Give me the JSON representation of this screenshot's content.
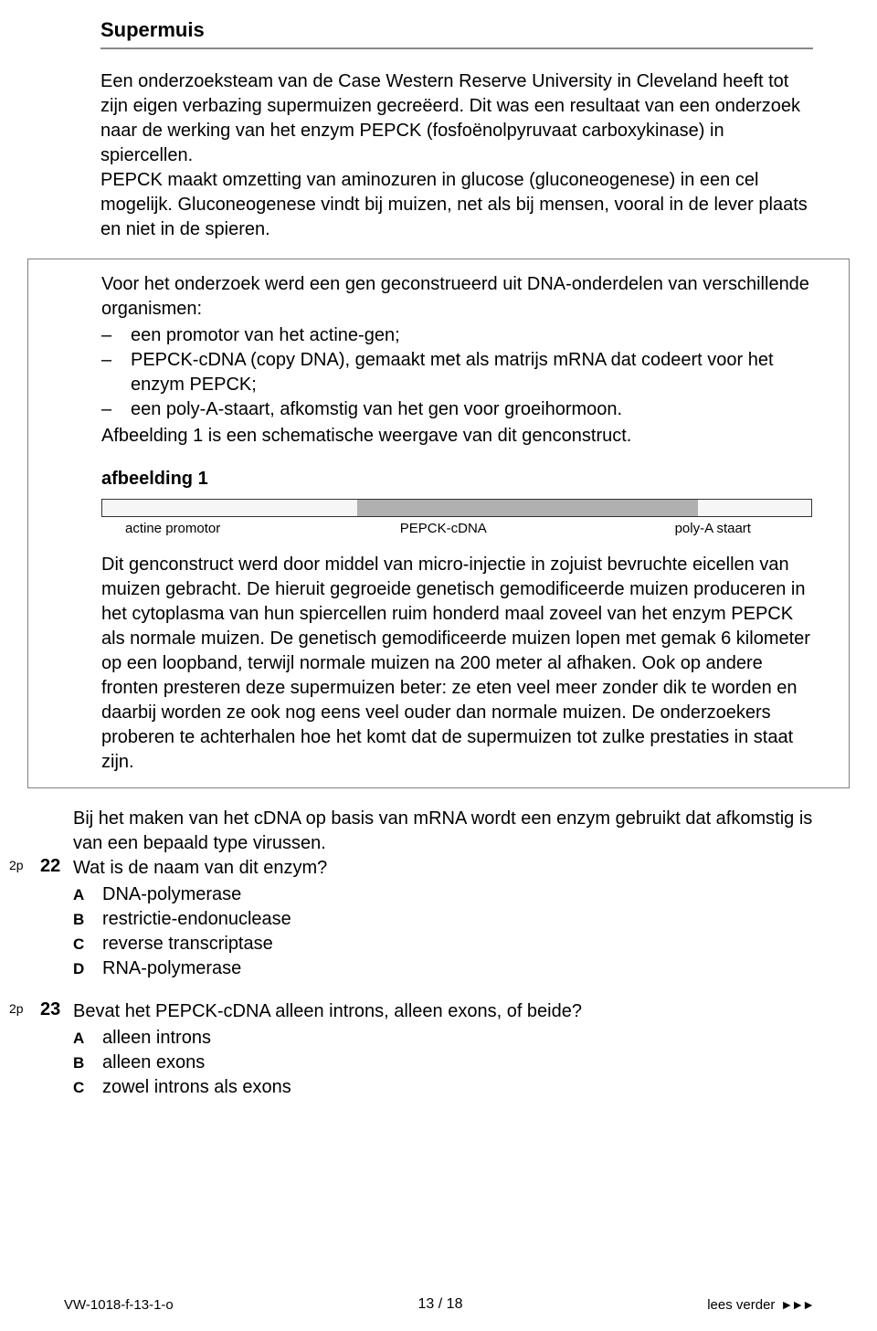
{
  "title": "Supermuis",
  "paragraph1": "Een onderzoeksteam van de Case Western Reserve University in Cleveland heeft tot zijn eigen verbazing supermuizen gecreëerd. Dit was een resultaat van een onderzoek naar de werking van het enzym PEPCK (fosfoënolpyruvaat carboxykinase) in spiercellen.",
  "paragraph1b": "PEPCK maakt omzetting van aminozuren in glucose (gluconeogenese) in een cel mogelijk. Gluconeogenese vindt bij muizen, net als bij mensen, vooral in de lever plaats en niet in de spieren.",
  "box_intro": "Voor het onderzoek werd een gen geconstrueerd uit DNA-onderdelen van verschillende organismen:",
  "box_item1": "een promotor van het actine-gen;",
  "box_item2": "PEPCK-cDNA (copy DNA), gemaakt met als matrijs mRNA dat codeert voor het enzym PEPCK;",
  "box_item3": "een poly-A-staart, afkomstig van het gen voor groeihormoon.",
  "box_closing": "Afbeelding 1 is een schematische weergave van dit genconstruct.",
  "fig_label": "afbeelding 1",
  "diagram": {
    "seg1_width": 36,
    "seg2_width": 48,
    "seg3_width": 16,
    "label1": "actine promotor",
    "label2": "PEPCK-cDNA",
    "label3": "poly-A staart",
    "label1_flex": 40,
    "label2_flex": 40,
    "label3_flex": 20
  },
  "paragraph_after_fig": "Dit genconstruct werd door middel van micro-injectie in zojuist bevruchte eicellen van muizen gebracht. De hieruit gegroeide genetisch gemodificeerde muizen produceren in het cytoplasma van hun spiercellen ruim honderd maal zoveel van het enzym PEPCK als normale muizen. De genetisch gemodificeerde muizen lopen met gemak 6 kilometer op een loopband, terwijl normale muizen na 200 meter al afhaken. Ook op andere fronten presteren deze supermuizen beter: ze eten veel meer zonder dik te worden en daarbij worden ze ook nog eens veel ouder dan normale muizen. De onderzoekers proberen te achterhalen hoe het komt dat de supermuizen tot zulke prestaties in staat zijn.",
  "q22": {
    "points": "2p",
    "number": "22",
    "intro": "Bij het maken van het cDNA op basis van mRNA wordt een enzym gebruikt dat afkomstig is van een bepaald type virussen.",
    "question": "Wat is de naam van dit enzym?",
    "options": {
      "A": "DNA-polymerase",
      "B": "restrictie-endonuclease",
      "C": "reverse transcriptase",
      "D": "RNA-polymerase"
    }
  },
  "q23": {
    "points": "2p",
    "number": "23",
    "question": "Bevat het PEPCK-cDNA alleen introns, alleen exons, of beide?",
    "options": {
      "A": "alleen introns",
      "B": "alleen exons",
      "C": "zowel introns als exons"
    }
  },
  "footer": {
    "left": "VW-1018-f-13-1-o",
    "page": "13 / 18",
    "right": "lees verder"
  }
}
